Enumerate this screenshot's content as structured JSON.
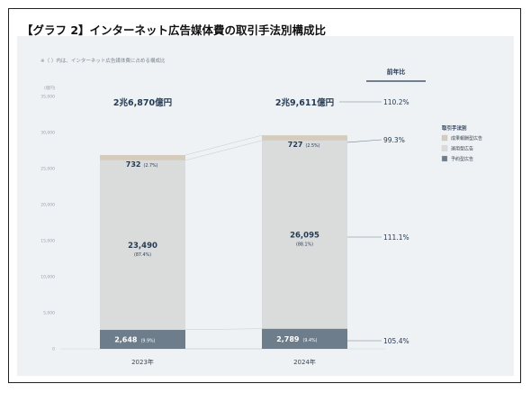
{
  "title": "【グラフ 2】インターネット広告媒体費の取引手法別構成比",
  "note": "※（ ）内は、インターネット広告媒体費に占める構成比",
  "colors": {
    "seika": "#d5ccbd",
    "unyo": "#d9dcdb",
    "yoyaku": "#6e7d8b",
    "panel": "#eef2f4",
    "navy": "#253a54"
  },
  "chart_data": {
    "type": "bar",
    "stacked": true,
    "categories": [
      "2023年",
      "2024年"
    ],
    "series": [
      {
        "name": "予約型広告",
        "values": [
          2648,
          2789
        ],
        "shares": [
          "(9.9%)",
          "(9.4%)"
        ],
        "labels": [
          "2,648",
          "2,789"
        ]
      },
      {
        "name": "運用型広告",
        "values": [
          23490,
          26095
        ],
        "shares": [
          "(87.4%)",
          "(88.1%)"
        ],
        "labels": [
          "23,490",
          "26,095"
        ]
      },
      {
        "name": "成果報酬型広告",
        "values": [
          732,
          727
        ],
        "shares": [
          "(2.7%)",
          "(2.5%)"
        ],
        "labels": [
          "732",
          "727"
        ]
      }
    ],
    "totals": [
      "2兆6,870億円",
      "2兆9,611億円"
    ],
    "yoy_header": "前年比",
    "yoy": {
      "total": "110.2%",
      "seika": "99.3%",
      "unyo": "111.1%",
      "yoyaku": "105.4%"
    },
    "ylabel": "(億円)",
    "yticks": [
      0,
      5000,
      10000,
      15000,
      20000,
      25000,
      30000,
      35000
    ],
    "ytick_labels": [
      "0",
      "5,000",
      "10,000",
      "15,000",
      "20,000",
      "25,000",
      "30,000",
      "35,000"
    ],
    "ylim": [
      0,
      35000
    ],
    "legend": {
      "title": "取引手法別",
      "items": [
        "成果報酬型広告",
        "運用型広告",
        "予約型広告"
      ],
      "position": "right"
    }
  }
}
